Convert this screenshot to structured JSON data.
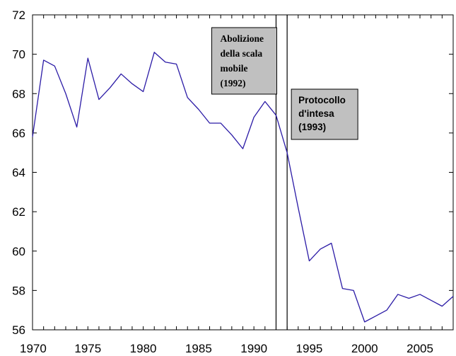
{
  "chart_data": {
    "type": "line",
    "x": [
      1970,
      1971,
      1972,
      1973,
      1974,
      1975,
      1976,
      1977,
      1978,
      1979,
      1980,
      1981,
      1982,
      1983,
      1984,
      1985,
      1986,
      1987,
      1988,
      1989,
      1990,
      1991,
      1992,
      1993,
      1994,
      1995,
      1996,
      1997,
      1998,
      1999,
      2000,
      2001,
      2002,
      2003,
      2004,
      2005,
      2006,
      2007,
      2008
    ],
    "series": [
      {
        "values": [
          65.8,
          69.7,
          69.4,
          68.0,
          66.3,
          69.8,
          67.7,
          68.3,
          69.0,
          68.5,
          68.1,
          70.1,
          69.6,
          69.5,
          67.8,
          67.2,
          66.5,
          66.5,
          65.9,
          65.2,
          66.8,
          67.6,
          66.9,
          65.0,
          62.2,
          59.5,
          60.1,
          60.4,
          58.1,
          58.0,
          56.4,
          56.7,
          57.0,
          57.8,
          57.6,
          57.8,
          57.5,
          57.2,
          57.7
        ],
        "color": "#2b1ba6"
      }
    ],
    "xlim": [
      1970,
      2008
    ],
    "ylim": [
      56,
      72
    ],
    "x_ticks": [
      1970,
      1975,
      1980,
      1985,
      1990,
      1995,
      2000,
      2005
    ],
    "y_ticks": [
      56,
      58,
      60,
      62,
      64,
      66,
      68,
      70,
      72
    ],
    "grid": false,
    "vertical_lines": [
      1992,
      1993
    ],
    "annotations": [
      {
        "lines": [
          "Abolizione",
          "della scala",
          "mobile",
          "(1992)"
        ],
        "anchor_x": 1992,
        "anchor_y": 72
      },
      {
        "lines": [
          "Protocollo",
          "d'intesa",
          "(1993)"
        ],
        "anchor_x": 1993,
        "anchor_y": 68
      }
    ]
  }
}
